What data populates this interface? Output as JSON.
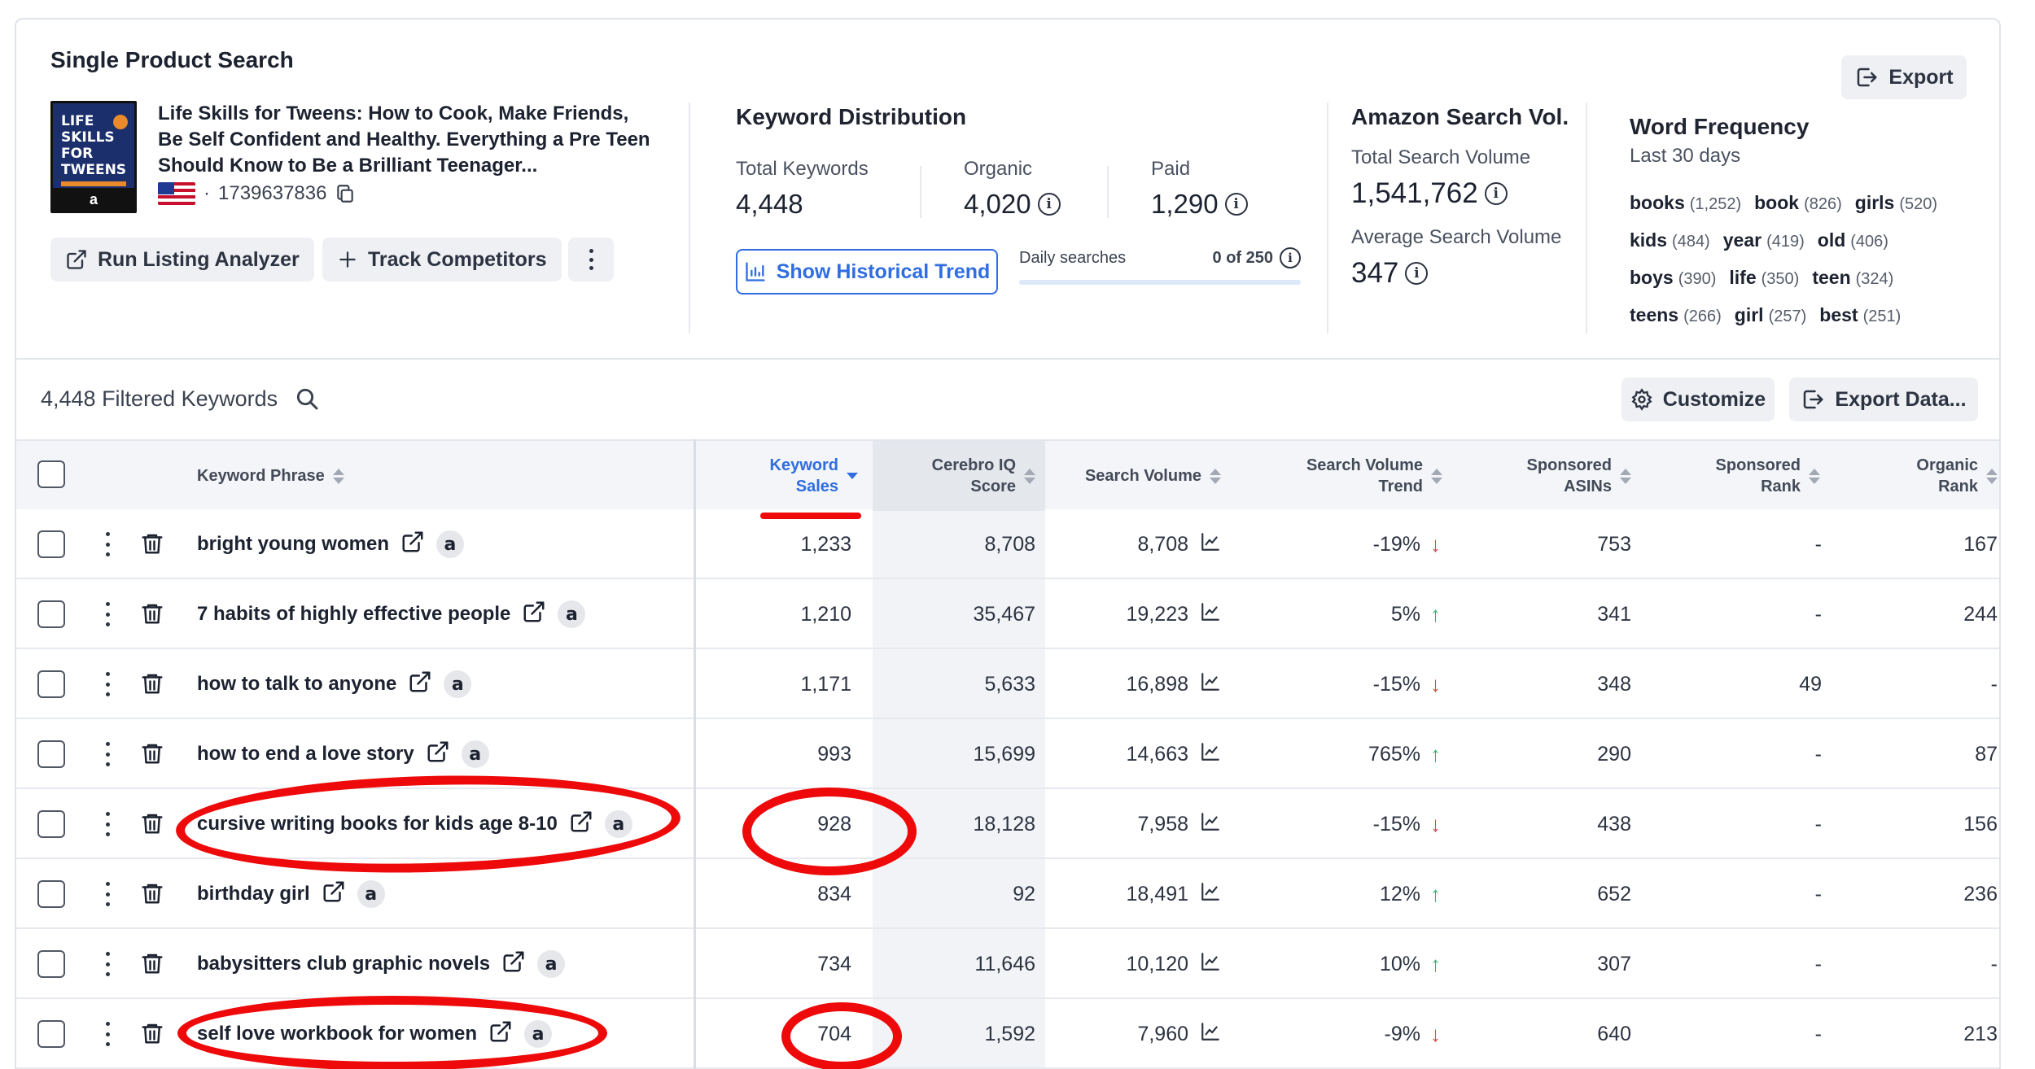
{
  "product_search": {
    "title": "Single Product Search",
    "export_label": "Export",
    "product": {
      "cover_title": "LIFE SKILLS FOR TWEENS",
      "cover_badge": "a",
      "title": "Life Skills for Tweens: How to Cook, Make Friends, Be Self Confident and Healthy. Everything a Pre Teen Should Know to Be a Brilliant Teenager...",
      "asin": "1739637836",
      "separator": "·"
    },
    "run_listing_label": "Run Listing Analyzer",
    "track_competitors_label": "Track Competitors"
  },
  "keyword_distribution": {
    "title": "Keyword Distribution",
    "total_label": "Total Keywords",
    "total_value": "4,448",
    "organic_label": "Organic",
    "organic_value": "4,020",
    "paid_label": "Paid",
    "paid_value": "1,290",
    "historical_label": "Show Historical Trend",
    "daily_label": "Daily searches",
    "daily_value": "0 of 250",
    "daily_used_fraction": 0
  },
  "amazon_search_vol": {
    "title": "Amazon Search Vol.",
    "total_label": "Total Search Volume",
    "total_value": "1,541,762",
    "avg_label": "Average Search Volume",
    "avg_value": "347"
  },
  "word_frequency": {
    "title": "Word Frequency",
    "subtitle": "Last 30 days",
    "rows": [
      [
        {
          "word": "books",
          "count": "(1,252)"
        },
        {
          "word": "book",
          "count": "(826)"
        },
        {
          "word": "girls",
          "count": "(520)"
        }
      ],
      [
        {
          "word": "kids",
          "count": "(484)"
        },
        {
          "word": "year",
          "count": "(419)"
        },
        {
          "word": "old",
          "count": "(406)"
        }
      ],
      [
        {
          "word": "boys",
          "count": "(390)"
        },
        {
          "word": "life",
          "count": "(350)"
        },
        {
          "word": "teen",
          "count": "(324)"
        }
      ],
      [
        {
          "word": "teens",
          "count": "(266)"
        },
        {
          "word": "girl",
          "count": "(257)"
        },
        {
          "word": "best",
          "count": "(251)"
        }
      ]
    ]
  },
  "filter_bar": {
    "filtered_label": "4,448 Filtered Keywords",
    "customize_label": "Customize",
    "export_data_label": "Export Data..."
  },
  "table": {
    "headers": {
      "keyword_phrase": "Keyword Phrase",
      "keyword_sales_1": "Keyword",
      "keyword_sales_2": "Sales",
      "cerebro_1": "Cerebro IQ",
      "cerebro_2": "Score",
      "search_volume": "Search Volume",
      "svt_1": "Search Volume",
      "svt_2": "Trend",
      "sponsored_asins_1": "Sponsored",
      "sponsored_asins_2": "ASINs",
      "sponsored_rank_1": "Sponsored",
      "sponsored_rank_2": "Rank",
      "organic_rank_1": "Organic",
      "organic_rank_2": "Rank"
    },
    "rows": [
      {
        "keyword": "bright young women",
        "sales": "1,233",
        "iq": "8,708",
        "volume": "8,708",
        "trend": "-19%",
        "trend_dir": "down",
        "asins": "753",
        "sp_rank": "-",
        "org_rank": "167"
      },
      {
        "keyword": "7 habits of highly effective people",
        "sales": "1,210",
        "iq": "35,467",
        "volume": "19,223",
        "trend": "5%",
        "trend_dir": "up",
        "asins": "341",
        "sp_rank": "-",
        "org_rank": "244"
      },
      {
        "keyword": "how to talk to anyone",
        "sales": "1,171",
        "iq": "5,633",
        "volume": "16,898",
        "trend": "-15%",
        "trend_dir": "down",
        "asins": "348",
        "sp_rank": "49",
        "org_rank": "-"
      },
      {
        "keyword": "how to end a love story",
        "sales": "993",
        "iq": "15,699",
        "volume": "14,663",
        "trend": "765%",
        "trend_dir": "up",
        "asins": "290",
        "sp_rank": "-",
        "org_rank": "87"
      },
      {
        "keyword": "cursive writing books for kids age 8-10",
        "sales": "928",
        "iq": "18,128",
        "volume": "7,958",
        "trend": "-15%",
        "trend_dir": "down",
        "asins": "438",
        "sp_rank": "-",
        "org_rank": "156"
      },
      {
        "keyword": "birthday girl",
        "sales": "834",
        "iq": "92",
        "volume": "18,491",
        "trend": "12%",
        "trend_dir": "up",
        "asins": "652",
        "sp_rank": "-",
        "org_rank": "236"
      },
      {
        "keyword": "babysitters club graphic novels",
        "sales": "734",
        "iq": "11,646",
        "volume": "10,120",
        "trend": "10%",
        "trend_dir": "up",
        "asins": "307",
        "sp_rank": "-",
        "org_rank": "-"
      },
      {
        "keyword": "self love workbook for women",
        "sales": "704",
        "iq": "1,592",
        "volume": "7,960",
        "trend": "-9%",
        "trend_dir": "down",
        "asins": "640",
        "sp_rank": "-",
        "org_rank": "213"
      }
    ],
    "amazon_badge": "a"
  },
  "colors": {
    "accent": "#2f6de0",
    "trend_up": "#2fb574",
    "trend_down": "#e4473b",
    "annotation": "#ee0a0a"
  },
  "icons": [
    "export-icon",
    "external-link-icon",
    "plus-icon",
    "more-vertical-icon",
    "info-icon",
    "bar-chart-icon",
    "search-icon",
    "gear-icon",
    "trash-icon",
    "line-chart-icon",
    "copy-icon",
    "amazon-icon",
    "arrow-up-icon",
    "arrow-down-icon",
    "sort-icon",
    "us-flag-icon"
  ]
}
